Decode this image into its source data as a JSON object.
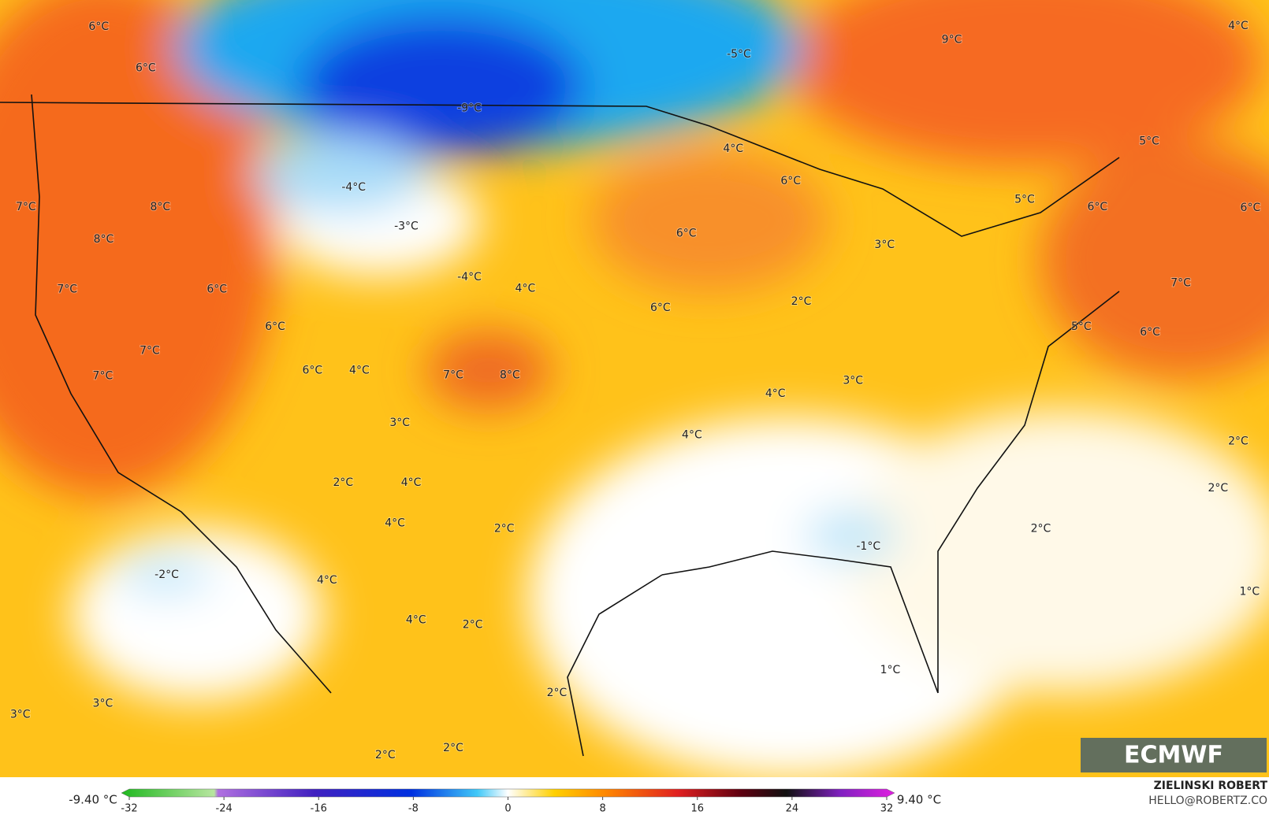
{
  "map": {
    "labels": [
      "6°C",
      "6°C",
      "7°C",
      "8°C",
      "8°C",
      "7°C",
      "6°C",
      "6°C",
      "7°C",
      "7°C",
      "6°C",
      "4°C",
      "7°C",
      "8°C",
      "-9°C",
      "-4°C",
      "-3°C",
      "-4°C",
      "4°C",
      "-5°C",
      "9°C",
      "4°C",
      "4°C",
      "6°C",
      "6°C",
      "6°C",
      "3°C",
      "2°C",
      "5°C",
      "5°C",
      "6°C",
      "6°C",
      "7°C",
      "5°C",
      "6°C",
      "3°C",
      "4°C",
      "4°C",
      "3°C",
      "2°C",
      "4°C",
      "4°C",
      "2°C",
      "-2°C",
      "4°C",
      "4°C",
      "2°C",
      "-1°C",
      "2°C",
      "2°C",
      "2°C",
      "1°C",
      "1°C",
      "2°C",
      "3°C",
      "3°C",
      "2°C",
      "2°C"
    ],
    "logo": "ECMWF"
  },
  "colorbar": {
    "lim": [
      -32,
      32
    ],
    "ticks": [
      -32,
      -24,
      -16,
      -8,
      0,
      8,
      16,
      24,
      32
    ],
    "min_label": "-9.40 °C",
    "max_label": "9.40 °C"
  },
  "credit": {
    "author": "ZIELINSKI ROBERT",
    "contact": "HELLO@ROBERTZ.CO"
  }
}
